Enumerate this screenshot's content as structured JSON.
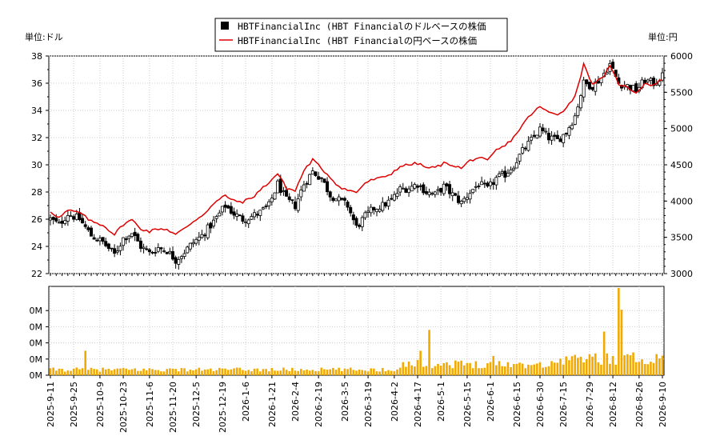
{
  "chart_data": [
    {
      "type": "candlestick",
      "left_unit_label": "単位:ドル",
      "right_unit_label": "単位:円",
      "legend": [
        {
          "label": "HBTFinancialInc (HBT Financialのドルベースの株価",
          "color": "#000000",
          "marker": "square"
        },
        {
          "label": "HBTFinancialInc (HBT Financialの円ベースの株価",
          "color": "#dd0000",
          "marker": "line"
        }
      ],
      "y_left": {
        "min": 22,
        "max": 38,
        "ticks": [
          "22",
          "24",
          "26",
          "28",
          "30",
          "32",
          "34",
          "36",
          "38"
        ]
      },
      "y_right": {
        "min": 3000,
        "max": 6000,
        "ticks": [
          "3000",
          "3500",
          "4000",
          "4500",
          "5000",
          "5500",
          "6000"
        ]
      },
      "x_ticks": [
        "2025-9-11",
        "2025-9-25",
        "2025-10-9",
        "2025-10-23",
        "2025-11-6",
        "2025-11-20",
        "2025-12-5",
        "2025-12-19",
        "2026-1-6",
        "2026-1-21",
        "2026-2-4",
        "2026-2-19",
        "2026-3-5",
        "2026-3-19",
        "2026-4-2",
        "2026-4-17",
        "2026-5-1",
        "2026-5-15",
        "2026-6-1",
        "2026-6-15",
        "2026-6-30",
        "2026-7-15",
        "2026-7-29",
        "2026-8-12",
        "2026-8-26",
        "2026-9-10"
      ],
      "price_anchors": [
        [
          0,
          26.0
        ],
        [
          3,
          25.6
        ],
        [
          6,
          26.4
        ],
        [
          10,
          26.0
        ],
        [
          14,
          24.8
        ],
        [
          18,
          24.3
        ],
        [
          22,
          23.4
        ],
        [
          25,
          24.6
        ],
        [
          28,
          25.0
        ],
        [
          31,
          24.0
        ],
        [
          34,
          23.5
        ],
        [
          37,
          23.9
        ],
        [
          40,
          23.7
        ],
        [
          43,
          23.0
        ],
        [
          46,
          23.6
        ],
        [
          49,
          24.3
        ],
        [
          52,
          24.8
        ],
        [
          56,
          25.8
        ],
        [
          60,
          27.0
        ],
        [
          63,
          26.4
        ],
        [
          66,
          26.0
        ],
        [
          69,
          26.2
        ],
        [
          72,
          26.5
        ],
        [
          75,
          27.0
        ],
        [
          78,
          28.6
        ],
        [
          81,
          27.4
        ],
        [
          84,
          27.0
        ],
        [
          87,
          28.6
        ],
        [
          90,
          29.5
        ],
        [
          93,
          29.0
        ],
        [
          96,
          27.8
        ],
        [
          99,
          27.4
        ],
        [
          102,
          27.0
        ],
        [
          105,
          25.4
        ],
        [
          108,
          26.2
        ],
        [
          111,
          26.8
        ],
        [
          114,
          27.0
        ],
        [
          117,
          27.4
        ],
        [
          120,
          28.2
        ],
        [
          123,
          28.3
        ],
        [
          126,
          28.6
        ],
        [
          129,
          28.0
        ],
        [
          132,
          27.8
        ],
        [
          135,
          28.4
        ],
        [
          138,
          27.8
        ],
        [
          141,
          27.2
        ],
        [
          144,
          28.0
        ],
        [
          147,
          28.6
        ],
        [
          150,
          28.2
        ],
        [
          153,
          29.0
        ],
        [
          156,
          29.3
        ],
        [
          159,
          30.0
        ],
        [
          162,
          31.0
        ],
        [
          165,
          31.8
        ],
        [
          168,
          32.6
        ],
        [
          171,
          32.0
        ],
        [
          174,
          31.8
        ],
        [
          177,
          32.4
        ],
        [
          180,
          33.6
        ],
        [
          183,
          36.0
        ],
        [
          186,
          35.8
        ],
        [
          189,
          36.4
        ],
        [
          192,
          37.4
        ],
        [
          195,
          36.0
        ],
        [
          198,
          35.8
        ],
        [
          201,
          35.5
        ],
        [
          204,
          36.2
        ],
        [
          207,
          36.0
        ],
        [
          210,
          36.5
        ]
      ],
      "yen_anchors": [
        [
          0,
          3860
        ],
        [
          3,
          3770
        ],
        [
          6,
          3870
        ],
        [
          10,
          3840
        ],
        [
          14,
          3720
        ],
        [
          18,
          3670
        ],
        [
          22,
          3540
        ],
        [
          25,
          3680
        ],
        [
          28,
          3740
        ],
        [
          31,
          3620
        ],
        [
          34,
          3580
        ],
        [
          37,
          3620
        ],
        [
          40,
          3610
        ],
        [
          43,
          3540
        ],
        [
          46,
          3620
        ],
        [
          49,
          3720
        ],
        [
          52,
          3800
        ],
        [
          56,
          3960
        ],
        [
          60,
          4080
        ],
        [
          63,
          4000
        ],
        [
          66,
          3990
        ],
        [
          69,
          4040
        ],
        [
          72,
          4150
        ],
        [
          75,
          4260
        ],
        [
          78,
          4380
        ],
        [
          81,
          4180
        ],
        [
          84,
          4140
        ],
        [
          87,
          4420
        ],
        [
          90,
          4570
        ],
        [
          93,
          4450
        ],
        [
          96,
          4330
        ],
        [
          99,
          4200
        ],
        [
          102,
          4150
        ],
        [
          105,
          4120
        ],
        [
          108,
          4250
        ],
        [
          111,
          4300
        ],
        [
          114,
          4320
        ],
        [
          117,
          4380
        ],
        [
          120,
          4480
        ],
        [
          123,
          4500
        ],
        [
          126,
          4520
        ],
        [
          129,
          4460
        ],
        [
          132,
          4460
        ],
        [
          135,
          4520
        ],
        [
          138,
          4500
        ],
        [
          141,
          4450
        ],
        [
          144,
          4560
        ],
        [
          147,
          4600
        ],
        [
          150,
          4550
        ],
        [
          153,
          4700
        ],
        [
          156,
          4760
        ],
        [
          159,
          4880
        ],
        [
          162,
          5050
        ],
        [
          165,
          5200
        ],
        [
          168,
          5300
        ],
        [
          171,
          5220
        ],
        [
          174,
          5200
        ],
        [
          177,
          5280
        ],
        [
          180,
          5450
        ],
        [
          183,
          5880
        ],
        [
          186,
          5620
        ],
        [
          189,
          5680
        ],
        [
          192,
          5850
        ],
        [
          195,
          5620
        ],
        [
          198,
          5560
        ],
        [
          201,
          5500
        ],
        [
          204,
          5620
        ],
        [
          207,
          5600
        ],
        [
          210,
          5680
        ]
      ],
      "volume_y_ticks": [
        "0M",
        "0M",
        "0M",
        "0M",
        "0M"
      ]
    }
  ]
}
